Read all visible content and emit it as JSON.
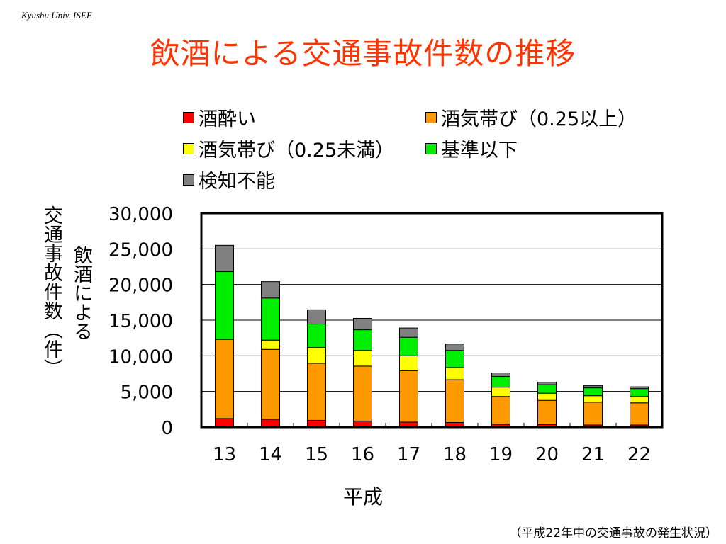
{
  "header": {
    "org": "Kyushu Univ. ISEE",
    "title": "飲酒による交通事故件数の推移"
  },
  "footer": {
    "source": "（平成22年中の交通事故の発生状況）"
  },
  "chart_data": {
    "type": "bar",
    "stacked": true,
    "title": "飲酒による交通事故件数の推移",
    "xlabel": "平成",
    "ylabel": "交通事故件数（件）",
    "ylabel_secondary": "飲酒による",
    "categories": [
      "13",
      "14",
      "15",
      "16",
      "17",
      "18",
      "19",
      "20",
      "21",
      "22"
    ],
    "ylim": [
      0,
      30000
    ],
    "yticks": [
      0,
      5000,
      10000,
      15000,
      20000,
      25000,
      30000
    ],
    "ytick_labels": [
      "0",
      "5,000",
      "10,000",
      "15,000",
      "20,000",
      "25,000",
      "30,000"
    ],
    "grid": true,
    "legend_position": "top",
    "series": [
      {
        "name": "酒酔い",
        "color": "#ff0000",
        "values": [
          1200,
          1100,
          950,
          850,
          700,
          650,
          400,
          350,
          300,
          300
        ]
      },
      {
        "name": "酒気帯び（0.25以上）",
        "color": "#ff9900",
        "values": [
          11100,
          9800,
          8000,
          7700,
          7200,
          6000,
          3900,
          3400,
          3200,
          3100
        ]
      },
      {
        "name": "酒気帯び（0.25未満）",
        "color": "#ffff00",
        "values": [
          0,
          1300,
          2200,
          2200,
          2100,
          1700,
          1300,
          1000,
          900,
          900
        ]
      },
      {
        "name": "基準以下",
        "color": "#00ee00",
        "values": [
          9500,
          5900,
          3300,
          2900,
          2600,
          2400,
          1500,
          1200,
          1100,
          1100
        ]
      },
      {
        "name": "検知不能",
        "color": "#808080",
        "values": [
          3700,
          2300,
          2000,
          1600,
          1300,
          900,
          500,
          350,
          300,
          250
        ]
      }
    ]
  }
}
